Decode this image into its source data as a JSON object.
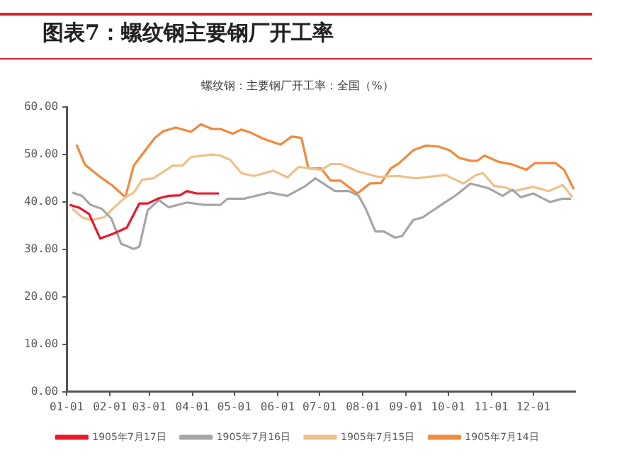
{
  "chart_data": {
    "type": "line",
    "title": "图表7：螺纹钢主要钢厂开工率",
    "subtitle": "螺纹钢：主要钢厂开工率：全国（%）",
    "xlim": [
      "--01-01",
      "--12-31"
    ],
    "xticks": [
      {
        "value": "--01-01",
        "label": "01-01"
      },
      {
        "value": "--02-01",
        "label": "02-01"
      },
      {
        "value": "--03-01",
        "label": "03-01"
      },
      {
        "value": "--04-01",
        "label": "04-01"
      },
      {
        "value": "--05-01",
        "label": "05-01"
      },
      {
        "value": "--06-01",
        "label": "06-01"
      },
      {
        "value": "--07-01",
        "label": "07-01"
      },
      {
        "value": "--08-01",
        "label": "08-01"
      },
      {
        "value": "--09-01",
        "label": "09-01"
      },
      {
        "value": "--10-01",
        "label": "10-01"
      },
      {
        "value": "--11-01",
        "label": "11-01"
      },
      {
        "value": "--12-01",
        "label": "12-01"
      }
    ],
    "ylim": [
      0,
      60
    ],
    "yticks": [
      {
        "value": 0,
        "label": "0.00"
      },
      {
        "value": 10,
        "label": "10.00"
      },
      {
        "value": 20,
        "label": "20.00"
      },
      {
        "value": 30,
        "label": "30.00"
      },
      {
        "value": 40,
        "label": "40.00"
      },
      {
        "value": 50,
        "label": "50.00"
      },
      {
        "value": 60,
        "label": "60.00"
      }
    ],
    "grid": false,
    "legend": "bottom",
    "marker": "none",
    "line_style": "solid",
    "series": [
      {
        "name": "1905年7月17日",
        "color": "#e8192c",
        "x": [
          "--01-03",
          "--01-10",
          "--01-17",
          "--01-25",
          "--02-03",
          "--02-13",
          "--02-22",
          "--02-28",
          "--03-08",
          "--03-15",
          "--03-23",
          "--03-28",
          "--04-04",
          "--04-20"
        ],
        "values": [
          39.4,
          38.8,
          37.5,
          32.3,
          33.3,
          34.6,
          39.7,
          39.7,
          40.8,
          41.3,
          41.4,
          42.3,
          41.8,
          41.8
        ]
      },
      {
        "name": "1905年7月16日",
        "color": "#a6a6a6",
        "x": [
          "--01-05",
          "--01-12",
          "--01-18",
          "--01-26",
          "--02-02",
          "--02-09",
          "--02-18",
          "--02-22",
          "--02-28",
          "--03-08",
          "--03-15",
          "--03-28",
          "--04-10",
          "--04-21",
          "--04-26",
          "--05-08",
          "--05-26",
          "--06-08",
          "--06-21",
          "--06-28",
          "--07-12",
          "--07-22",
          "--07-29",
          "--08-03",
          "--08-10",
          "--08-16",
          "--08-24",
          "--08-29",
          "--09-06",
          "--09-13",
          "--09-26",
          "--10-07",
          "--10-17",
          "--10-30",
          "--11-09",
          "--11-16",
          "--11-22",
          "--12-01",
          "--12-13",
          "--12-22",
          "--12-28"
        ],
        "values": [
          42.0,
          41.3,
          39.4,
          38.6,
          36.5,
          31.2,
          30.1,
          30.6,
          38.3,
          40.4,
          38.9,
          39.9,
          39.4,
          39.4,
          40.7,
          40.7,
          42.0,
          41.3,
          43.4,
          45.0,
          42.3,
          42.3,
          41.3,
          38.6,
          33.8,
          33.8,
          32.5,
          32.8,
          36.2,
          36.8,
          39.4,
          41.5,
          43.9,
          42.9,
          41.3,
          42.6,
          41.0,
          41.8,
          40.0,
          40.7,
          40.7
        ]
      },
      {
        "name": "1905年7月15日",
        "color": "#f0c08a",
        "x": [
          "--01-05",
          "--01-12",
          "--01-18",
          "--01-28",
          "--02-03",
          "--02-12",
          "--02-18",
          "--02-24",
          "--03-04",
          "--03-18",
          "--03-25",
          "--03-31",
          "--04-15",
          "--04-21",
          "--04-28",
          "--05-06",
          "--05-15",
          "--05-29",
          "--06-08",
          "--06-16",
          "--07-02",
          "--07-09",
          "--07-16",
          "--07-29",
          "--08-12",
          "--08-26",
          "--09-08",
          "--09-29",
          "--10-12",
          "--10-21",
          "--10-26",
          "--11-03",
          "--11-11",
          "--11-17",
          "--12-01",
          "--12-12",
          "--12-22",
          "--12-29"
        ],
        "values": [
          38.6,
          36.8,
          36.2,
          36.8,
          38.6,
          41.0,
          42.0,
          44.7,
          45.0,
          47.7,
          47.7,
          49.5,
          50.0,
          49.8,
          48.9,
          46.1,
          45.5,
          46.6,
          45.2,
          47.4,
          46.8,
          48.0,
          48.0,
          46.4,
          45.3,
          45.5,
          45.0,
          45.7,
          43.9,
          45.7,
          46.1,
          43.4,
          43.1,
          42.3,
          43.2,
          42.3,
          43.6,
          41.0
        ]
      },
      {
        "name": "1905年7月14日",
        "color": "#f08a3c",
        "x": [
          "--01-08",
          "--01-14",
          "--01-24",
          "--02-03",
          "--02-12",
          "--02-18",
          "--03-05",
          "--03-11",
          "--03-20",
          "--03-31",
          "--04-07",
          "--04-15",
          "--04-21",
          "--04-30",
          "--05-06",
          "--05-13",
          "--05-22",
          "--06-03",
          "--06-11",
          "--06-18",
          "--06-23",
          "--07-02",
          "--07-09",
          "--07-16",
          "--07-28",
          "--08-06",
          "--08-14",
          "--08-21",
          "--08-27",
          "--09-06",
          "--09-15",
          "--09-24",
          "--10-02",
          "--10-09",
          "--10-17",
          "--10-22",
          "--10-27",
          "--11-06",
          "--11-16",
          "--11-26",
          "--12-02",
          "--12-17",
          "--12-23",
          "--12-30"
        ],
        "values": [
          52.1,
          47.9,
          45.5,
          43.4,
          41.0,
          47.7,
          53.5,
          54.9,
          55.7,
          54.8,
          56.4,
          55.4,
          55.4,
          54.4,
          55.3,
          54.6,
          53.3,
          52.1,
          53.8,
          53.5,
          47.1,
          47.1,
          44.5,
          44.5,
          41.8,
          43.9,
          44.0,
          47.1,
          48.2,
          50.9,
          51.9,
          51.7,
          50.9,
          49.3,
          48.7,
          48.7,
          49.8,
          48.5,
          47.9,
          46.8,
          48.2,
          48.2,
          46.8,
          42.7
        ]
      }
    ]
  }
}
